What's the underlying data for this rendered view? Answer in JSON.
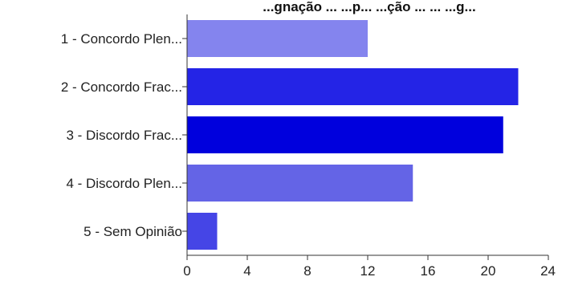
{
  "chart_data": {
    "type": "bar",
    "orientation": "horizontal",
    "title": "...gnação ... ...p... ...ção ... ... ...g...",
    "categories": [
      "1 - Concordo Plen...",
      "2 - Concordo Frac...",
      "3 - Discordo Frac...",
      "4 - Discordo Plen...",
      "5 - Sem Opinião"
    ],
    "values": [
      12,
      22,
      21,
      15,
      2
    ],
    "colors": [
      "#8484ee",
      "#2424e6",
      "#0000dd",
      "#6464e6",
      "#4545e6"
    ],
    "xlim": [
      0,
      24
    ],
    "xticks": [
      0,
      4,
      8,
      12,
      16,
      20,
      24
    ],
    "grid": false
  }
}
